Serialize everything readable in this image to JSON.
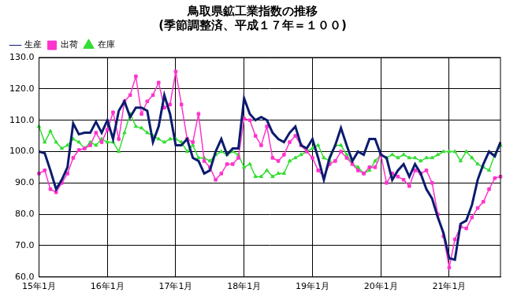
{
  "chart_data": {
    "type": "line",
    "title": [
      "鳥取県鉱工業指数の推移",
      "(季節調整済、平成１７年＝１００)"
    ],
    "categories": [
      "15年1月",
      null,
      null,
      null,
      null,
      null,
      null,
      null,
      null,
      null,
      null,
      null,
      "16年1月",
      null,
      null,
      null,
      null,
      null,
      null,
      null,
      null,
      null,
      null,
      null,
      "17年1月",
      null,
      null,
      null,
      null,
      null,
      null,
      null,
      null,
      null,
      null,
      null,
      "18年1月",
      null,
      null,
      null,
      null,
      null,
      null,
      null,
      null,
      null,
      null,
      null,
      "19年1月",
      null,
      null,
      null,
      null,
      null,
      null,
      null,
      null,
      null,
      null,
      null,
      "20年1月",
      null,
      null,
      null,
      null,
      null,
      null,
      null,
      null,
      null,
      null,
      null,
      "21年1月",
      null,
      null,
      null,
      null,
      null,
      null,
      null,
      null,
      null
    ],
    "series": [
      {
        "name": "生産",
        "color": "#0b1c6e",
        "marker": "none",
        "line_style": "solid",
        "values": [
          100,
          99.5,
          94,
          88,
          91,
          95,
          109,
          105.5,
          106,
          106,
          109.5,
          106,
          110,
          104,
          113,
          116,
          111,
          114,
          114,
          113,
          103,
          108,
          118,
          112,
          102,
          102,
          104,
          98,
          97,
          93,
          94,
          100,
          104,
          99,
          101,
          101,
          117,
          112,
          110,
          111,
          110,
          106,
          104,
          103,
          106,
          108,
          102,
          101,
          104,
          98,
          91,
          98,
          102,
          107.5,
          102,
          97,
          100,
          99,
          104,
          104,
          99,
          98,
          91,
          94,
          96,
          92,
          96,
          93,
          88,
          85,
          79,
          74,
          66,
          65.5,
          77,
          78,
          83,
          91,
          96,
          100,
          98.5,
          103
        ]
      },
      {
        "name": "出荷",
        "color": "#ff33cc",
        "marker": "square",
        "line_style": "solid",
        "values": [
          93,
          94,
          88,
          87,
          90,
          93,
          98,
          100.5,
          101,
          102,
          106,
          103,
          107,
          112.5,
          104,
          116,
          118,
          124,
          112,
          116,
          118,
          122,
          114,
          115,
          125.5,
          115,
          104,
          103,
          112,
          97,
          95,
          91,
          93,
          96,
          96,
          98,
          110.5,
          110,
          105,
          102,
          108,
          98,
          97,
          99,
          103,
          105,
          102,
          100,
          98,
          94,
          92,
          96,
          97,
          100,
          98,
          96,
          94,
          93,
          95,
          95,
          99,
          90,
          93,
          92,
          91,
          89,
          94,
          93,
          94,
          90,
          80,
          73,
          63,
          72,
          76,
          75.5,
          79,
          82,
          84,
          88,
          91.5,
          92
        ]
      },
      {
        "name": "在庫",
        "color": "#33dd33",
        "marker": "triangle",
        "line_style": "solid",
        "values": [
          108,
          103,
          106.5,
          103,
          101,
          102,
          104,
          103,
          101,
          103,
          102,
          104,
          103,
          103,
          100,
          106,
          112,
          108,
          107.5,
          106,
          105,
          104,
          103,
          104,
          104,
          103,
          100,
          102,
          98,
          98,
          97,
          99,
          100,
          99,
          100,
          99,
          95,
          96,
          92,
          92,
          94,
          92,
          93,
          93,
          97,
          98,
          99,
          100,
          101,
          102,
          98,
          97,
          102,
          102,
          99,
          96,
          95,
          93,
          94,
          97,
          99,
          98,
          99,
          98,
          99,
          98,
          98,
          97,
          98,
          98,
          99,
          100,
          100,
          100,
          97,
          100,
          98,
          96,
          95,
          94,
          99,
          102
        ]
      }
    ],
    "ylim": [
      60,
      130
    ],
    "yticks": [
      {
        "value": 60,
        "label": "60.0"
      },
      {
        "value": 70,
        "label": "70.0"
      },
      {
        "value": 80,
        "label": "80.0"
      },
      {
        "value": 90,
        "label": "90.0"
      },
      {
        "value": 100,
        "label": "100.0"
      },
      {
        "value": 110,
        "label": "110.0"
      },
      {
        "value": 120,
        "label": "120.0"
      },
      {
        "value": 130,
        "label": "130.0"
      }
    ],
    "grid": true,
    "legend": "top-left"
  }
}
